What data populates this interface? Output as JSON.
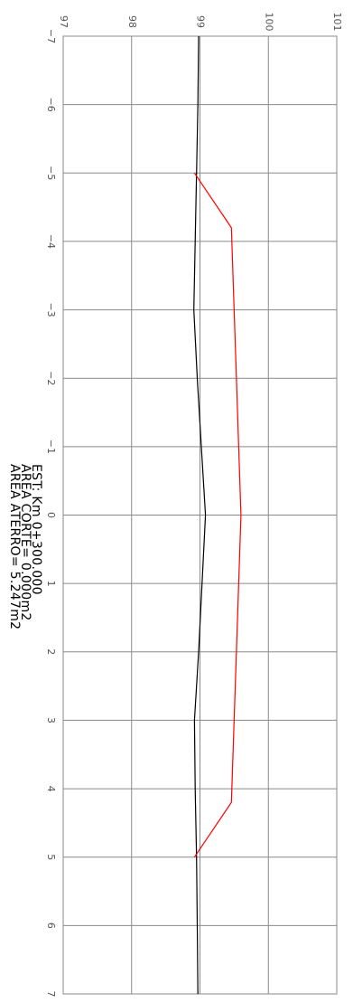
{
  "chart_data": {
    "type": "line",
    "orientation": "rotated-90-clockwise",
    "x_ticks": [
      "−7",
      "−6",
      "−5",
      "−4",
      "−3",
      "−2",
      "−1",
      "0",
      "1",
      "2",
      "3",
      "4",
      "5",
      "6",
      "7"
    ],
    "y_ticks": [
      "97",
      "98",
      "99",
      "100",
      "101"
    ],
    "xlim": [
      -7,
      7
    ],
    "ylim": [
      97,
      101
    ],
    "grid": true,
    "series": [
      {
        "color": "#000000",
        "points": [
          [
            -7,
            98.98
          ],
          [
            -6,
            98.97
          ],
          [
            -5,
            98.95
          ],
          [
            -4,
            98.93
          ],
          [
            -3,
            98.91
          ],
          [
            -2,
            98.96
          ],
          [
            -1,
            99.02
          ],
          [
            0,
            99.08
          ],
          [
            1,
            99.03
          ],
          [
            2,
            98.98
          ],
          [
            3,
            98.92
          ],
          [
            4,
            98.93
          ],
          [
            5,
            98.95
          ],
          [
            6,
            98.96
          ],
          [
            7,
            98.97
          ]
        ]
      },
      {
        "color": "#ff0000",
        "points": [
          [
            -5,
            98.92
          ],
          [
            -4.2,
            99.46
          ],
          [
            0,
            99.6
          ],
          [
            4.2,
            99.46
          ],
          [
            5,
            98.92
          ]
        ]
      }
    ],
    "annotations": [
      "EST: Km 0+300.000",
      "AREA CORTE= 0.000m2",
      "AREA ATERRO= 5.247m2"
    ]
  }
}
